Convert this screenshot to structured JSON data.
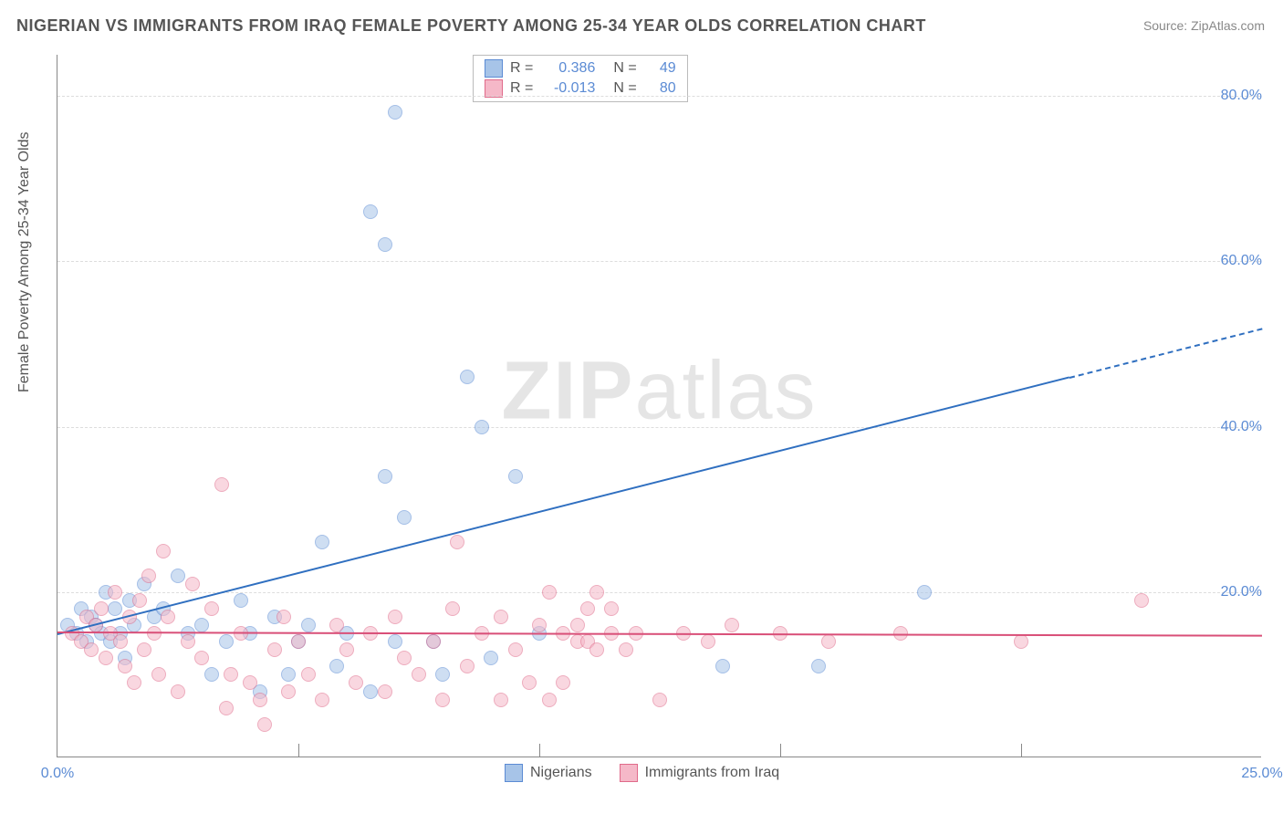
{
  "title": "NIGERIAN VS IMMIGRANTS FROM IRAQ FEMALE POVERTY AMONG 25-34 YEAR OLDS CORRELATION CHART",
  "source": "Source: ZipAtlas.com",
  "y_axis_label": "Female Poverty Among 25-34 Year Olds",
  "watermark": {
    "bold": "ZIP",
    "rest": "atlas"
  },
  "chart": {
    "type": "scatter",
    "xlim": [
      0,
      25
    ],
    "ylim": [
      0,
      85
    ],
    "x_ticks": [
      0,
      25
    ],
    "x_tick_labels": [
      "0.0%",
      "25.0%"
    ],
    "y_ticks": [
      20,
      40,
      60,
      80
    ],
    "y_tick_labels": [
      "20.0%",
      "40.0%",
      "60.0%",
      "80.0%"
    ],
    "x_minor_grid": [
      5,
      10,
      15,
      20
    ],
    "background_color": "#ffffff",
    "grid_color": "#dddddd",
    "axis_color": "#888888",
    "tick_label_color": "#5b8bd4",
    "title_color": "#555555",
    "title_fontsize": 18,
    "label_fontsize": 16,
    "tick_fontsize": 16,
    "point_radius": 8,
    "point_opacity": 0.55,
    "series": [
      {
        "name": "Nigerians",
        "color_fill": "#a7c4e8",
        "color_stroke": "#5b8bd4",
        "R": "0.386",
        "N": "49",
        "trend": {
          "x1": 0,
          "y1": 15,
          "x2": 25,
          "y2": 52,
          "solid_until_x": 21,
          "color": "#2f6fc0",
          "width": 2
        },
        "points": [
          [
            0.2,
            16
          ],
          [
            0.4,
            15
          ],
          [
            0.5,
            18
          ],
          [
            0.6,
            14
          ],
          [
            0.7,
            17
          ],
          [
            0.8,
            16
          ],
          [
            0.9,
            15
          ],
          [
            1.0,
            20
          ],
          [
            1.1,
            14
          ],
          [
            1.2,
            18
          ],
          [
            1.3,
            15
          ],
          [
            1.4,
            12
          ],
          [
            1.5,
            19
          ],
          [
            1.6,
            16
          ],
          [
            1.8,
            21
          ],
          [
            2.0,
            17
          ],
          [
            2.2,
            18
          ],
          [
            2.5,
            22
          ],
          [
            2.7,
            15
          ],
          [
            3.0,
            16
          ],
          [
            3.2,
            10
          ],
          [
            3.5,
            14
          ],
          [
            3.8,
            19
          ],
          [
            4.0,
            15
          ],
          [
            4.2,
            8
          ],
          [
            4.5,
            17
          ],
          [
            4.8,
            10
          ],
          [
            5.0,
            14
          ],
          [
            5.2,
            16
          ],
          [
            5.5,
            26
          ],
          [
            5.8,
            11
          ],
          [
            6.0,
            15
          ],
          [
            6.5,
            8
          ],
          [
            6.8,
            34
          ],
          [
            7.0,
            14
          ],
          [
            6.5,
            66
          ],
          [
            6.8,
            62
          ],
          [
            7.0,
            78
          ],
          [
            7.2,
            29
          ],
          [
            7.8,
            14
          ],
          [
            8.0,
            10
          ],
          [
            8.5,
            46
          ],
          [
            9.0,
            12
          ],
          [
            9.5,
            34
          ],
          [
            10.0,
            15
          ],
          [
            8.8,
            40
          ],
          [
            13.8,
            11
          ],
          [
            15.8,
            11
          ],
          [
            18.0,
            20
          ]
        ]
      },
      {
        "name": "Immigrants from Iraq",
        "color_fill": "#f5b8c8",
        "color_stroke": "#e06a8a",
        "R": "-0.013",
        "N": "80",
        "trend": {
          "x1": 0,
          "y1": 15.2,
          "x2": 25,
          "y2": 14.8,
          "solid_until_x": 25,
          "color": "#d94f78",
          "width": 2
        },
        "points": [
          [
            0.3,
            15
          ],
          [
            0.5,
            14
          ],
          [
            0.6,
            17
          ],
          [
            0.7,
            13
          ],
          [
            0.8,
            16
          ],
          [
            0.9,
            18
          ],
          [
            1.0,
            12
          ],
          [
            1.1,
            15
          ],
          [
            1.2,
            20
          ],
          [
            1.3,
            14
          ],
          [
            1.4,
            11
          ],
          [
            1.5,
            17
          ],
          [
            1.6,
            9
          ],
          [
            1.7,
            19
          ],
          [
            1.8,
            13
          ],
          [
            1.9,
            22
          ],
          [
            2.0,
            15
          ],
          [
            2.1,
            10
          ],
          [
            2.2,
            25
          ],
          [
            2.3,
            17
          ],
          [
            2.5,
            8
          ],
          [
            2.7,
            14
          ],
          [
            2.8,
            21
          ],
          [
            3.0,
            12
          ],
          [
            3.2,
            18
          ],
          [
            3.4,
            33
          ],
          [
            3.5,
            6
          ],
          [
            3.6,
            10
          ],
          [
            3.8,
            15
          ],
          [
            4.0,
            9
          ],
          [
            4.2,
            7
          ],
          [
            4.3,
            4
          ],
          [
            4.5,
            13
          ],
          [
            4.7,
            17
          ],
          [
            4.8,
            8
          ],
          [
            5.0,
            14
          ],
          [
            5.2,
            10
          ],
          [
            5.5,
            7
          ],
          [
            5.8,
            16
          ],
          [
            6.0,
            13
          ],
          [
            6.2,
            9
          ],
          [
            6.5,
            15
          ],
          [
            6.8,
            8
          ],
          [
            7.0,
            17
          ],
          [
            7.2,
            12
          ],
          [
            7.5,
            10
          ],
          [
            7.8,
            14
          ],
          [
            8.0,
            7
          ],
          [
            8.2,
            18
          ],
          [
            8.3,
            26
          ],
          [
            8.5,
            11
          ],
          [
            8.8,
            15
          ],
          [
            9.2,
            17
          ],
          [
            9.5,
            13
          ],
          [
            9.8,
            9
          ],
          [
            10.0,
            16
          ],
          [
            10.2,
            7
          ],
          [
            10.5,
            15
          ],
          [
            10.8,
            14
          ],
          [
            11.0,
            18
          ],
          [
            11.2,
            20
          ],
          [
            11.5,
            15
          ],
          [
            11.8,
            13
          ],
          [
            9.2,
            7
          ],
          [
            10.2,
            20
          ],
          [
            10.5,
            9
          ],
          [
            10.8,
            16
          ],
          [
            11.0,
            14
          ],
          [
            11.2,
            13
          ],
          [
            11.5,
            18
          ],
          [
            12.0,
            15
          ],
          [
            12.5,
            7
          ],
          [
            13.0,
            15
          ],
          [
            13.5,
            14
          ],
          [
            14.0,
            16
          ],
          [
            15.0,
            15
          ],
          [
            16.0,
            14
          ],
          [
            17.5,
            15
          ],
          [
            20.0,
            14
          ],
          [
            22.5,
            19
          ]
        ]
      }
    ]
  },
  "legend_top_label_R": "R =",
  "legend_top_label_N": "N =",
  "legend_bottom": [
    {
      "label": "Nigerians",
      "fill": "#a7c4e8",
      "stroke": "#5b8bd4"
    },
    {
      "label": "Immigrants from Iraq",
      "fill": "#f5b8c8",
      "stroke": "#e06a8a"
    }
  ]
}
